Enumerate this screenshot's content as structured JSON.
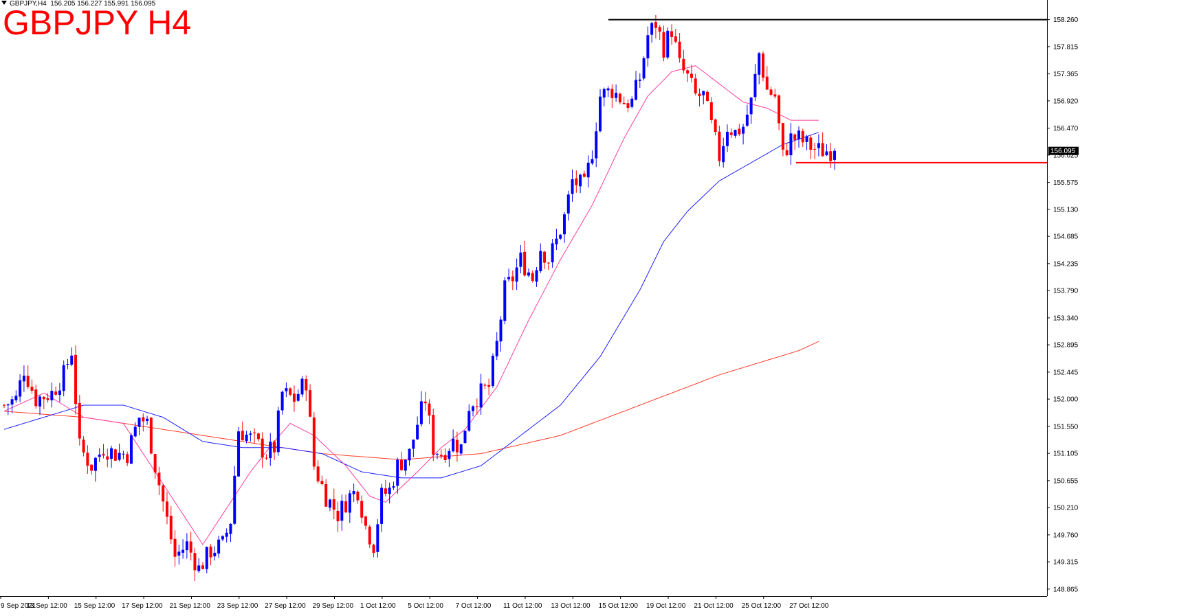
{
  "header": {
    "symbol_info": "GBPJPY,H4",
    "ohlc": "156.205 156.227 155.991 156.095",
    "title": "GBPJPY H4"
  },
  "chart_data": {
    "type": "candlestick",
    "symbol": "GBPJPY",
    "timeframe": "H4",
    "ylim": [
      148.75,
      158.38
    ],
    "y_ticks": [
      158.26,
      157.815,
      157.365,
      156.92,
      156.47,
      156.025,
      155.575,
      155.13,
      154.685,
      154.235,
      153.79,
      153.34,
      152.895,
      152.445,
      152.0,
      151.55,
      151.105,
      150.655,
      150.21,
      149.76,
      149.315,
      148.865
    ],
    "y_tick_labels": [
      "158.260",
      "157.815",
      "157.365",
      "156.920",
      "156.470",
      "156.025",
      "155.575",
      "155.130",
      "154.685",
      "154.235",
      "153.790",
      "153.340",
      "152.895",
      "152.445",
      "152.000",
      "151.550",
      "151.105",
      "150.655",
      "150.210",
      "149.760",
      "149.315",
      "148.865"
    ],
    "x_tick_labels": [
      "9 Sep 2021",
      "13 Sep 12:00",
      "15 Sep 12:00",
      "17 Sep 12:00",
      "21 Sep 12:00",
      "23 Sep 12:00",
      "27 Sep 12:00",
      "29 Sep 12:00",
      "1 Oct 12:00",
      "5 Oct 12:00",
      "7 Oct 12:00",
      "11 Oct 12:00",
      "13 Oct 12:00",
      "15 Oct 12:00",
      "19 Oct 12:00",
      "21 Oct 12:00",
      "25 Oct 12:00",
      "27 Oct 12:00"
    ],
    "x_tick_candle_index": [
      0,
      12,
      24,
      36,
      48,
      60,
      72,
      84,
      96,
      108,
      120,
      132,
      144,
      156,
      168,
      180,
      192,
      204
    ],
    "candles_count": 210,
    "current_price": 156.095,
    "current_price_label": "156.095",
    "resistance_level": 158.26,
    "support_level": 155.9,
    "bull_color": "#0000ff",
    "bear_color": "#ff0000",
    "ma_fast_color": "#ff3ca0",
    "ma_mid_color": "#1e1eff",
    "ma_slow_color": "#ff3c28",
    "close_anchors": [
      [
        0,
        151.9
      ],
      [
        3,
        152.0
      ],
      [
        5,
        152.5
      ],
      [
        8,
        152.0
      ],
      [
        12,
        152.1
      ],
      [
        15,
        152.4
      ],
      [
        17,
        152.8
      ],
      [
        19,
        151.2
      ],
      [
        22,
        150.9
      ],
      [
        25,
        151.2
      ],
      [
        28,
        151.1
      ],
      [
        31,
        151.1
      ],
      [
        34,
        151.7
      ],
      [
        36,
        151.6
      ],
      [
        38,
        150.9
      ],
      [
        41,
        150.0
      ],
      [
        43,
        149.4
      ],
      [
        46,
        149.6
      ],
      [
        49,
        149.2
      ],
      [
        52,
        149.5
      ],
      [
        55,
        149.6
      ],
      [
        57,
        150.0
      ],
      [
        59,
        151.5
      ],
      [
        61,
        151.4
      ],
      [
        63,
        151.3
      ],
      [
        66,
        151.1
      ],
      [
        68,
        151.2
      ],
      [
        70,
        152.1
      ],
      [
        73,
        152.0
      ],
      [
        76,
        152.3
      ],
      [
        78,
        150.9
      ],
      [
        81,
        150.4
      ],
      [
        84,
        150.1
      ],
      [
        87,
        150.4
      ],
      [
        89,
        150.5
      ],
      [
        91,
        149.9
      ],
      [
        93,
        149.6
      ],
      [
        95,
        150.4
      ],
      [
        97,
        150.5
      ],
      [
        99,
        150.9
      ],
      [
        102,
        151.1
      ],
      [
        104,
        151.6
      ],
      [
        106,
        152.0
      ],
      [
        108,
        151.2
      ],
      [
        110,
        151.1
      ],
      [
        113,
        151.3
      ],
      [
        115,
        151.2
      ],
      [
        117,
        151.9
      ],
      [
        120,
        152.1
      ],
      [
        122,
        152.2
      ],
      [
        124,
        152.9
      ],
      [
        126,
        153.8
      ],
      [
        128,
        154.0
      ],
      [
        130,
        154.3
      ],
      [
        133,
        154.0
      ],
      [
        135,
        154.5
      ],
      [
        137,
        154.3
      ],
      [
        139,
        154.6
      ],
      [
        141,
        155.0
      ],
      [
        143,
        155.6
      ],
      [
        146,
        155.5
      ],
      [
        148,
        156.1
      ],
      [
        150,
        157.0
      ],
      [
        153,
        157.1
      ],
      [
        156,
        156.9
      ],
      [
        158,
        156.9
      ],
      [
        160,
        157.3
      ],
      [
        162,
        158.0
      ],
      [
        164,
        158.2
      ],
      [
        166,
        157.8
      ],
      [
        168,
        158.1
      ],
      [
        170,
        157.5
      ],
      [
        172,
        157.3
      ],
      [
        174,
        157.0
      ],
      [
        176,
        157.0
      ],
      [
        178,
        156.5
      ],
      [
        180,
        156.0
      ],
      [
        182,
        156.5
      ],
      [
        184,
        156.4
      ],
      [
        186,
        156.5
      ],
      [
        188,
        156.9
      ],
      [
        190,
        157.7
      ],
      [
        192,
        157.1
      ],
      [
        194,
        157.0
      ],
      [
        196,
        156.0
      ],
      [
        198,
        156.3
      ],
      [
        200,
        156.3
      ],
      [
        202,
        156.2
      ],
      [
        205,
        156.1
      ]
    ],
    "ma_fast_anchors": [
      [
        0,
        151.8
      ],
      [
        10,
        152.1
      ],
      [
        20,
        151.7
      ],
      [
        30,
        151.6
      ],
      [
        36,
        151.0
      ],
      [
        44,
        150.2
      ],
      [
        50,
        149.6
      ],
      [
        56,
        150.2
      ],
      [
        62,
        150.8
      ],
      [
        68,
        151.3
      ],
      [
        72,
        151.6
      ],
      [
        78,
        151.4
      ],
      [
        86,
        150.9
      ],
      [
        92,
        150.4
      ],
      [
        96,
        150.3
      ],
      [
        104,
        150.8
      ],
      [
        110,
        151.2
      ],
      [
        116,
        151.5
      ],
      [
        124,
        152.2
      ],
      [
        132,
        153.3
      ],
      [
        140,
        154.3
      ],
      [
        148,
        155.2
      ],
      [
        156,
        156.3
      ],
      [
        162,
        157.0
      ],
      [
        168,
        157.4
      ],
      [
        174,
        157.5
      ],
      [
        180,
        157.2
      ],
      [
        186,
        156.9
      ],
      [
        192,
        156.8
      ],
      [
        198,
        156.6
      ],
      [
        205,
        156.6
      ]
    ],
    "ma_mid_anchors": [
      [
        0,
        151.5
      ],
      [
        10,
        151.7
      ],
      [
        20,
        151.9
      ],
      [
        30,
        151.9
      ],
      [
        40,
        151.7
      ],
      [
        50,
        151.3
      ],
      [
        60,
        151.2
      ],
      [
        70,
        151.2
      ],
      [
        80,
        151.1
      ],
      [
        90,
        150.8
      ],
      [
        100,
        150.7
      ],
      [
        110,
        150.7
      ],
      [
        120,
        150.9
      ],
      [
        130,
        151.4
      ],
      [
        140,
        151.9
      ],
      [
        150,
        152.7
      ],
      [
        160,
        153.8
      ],
      [
        166,
        154.6
      ],
      [
        172,
        155.1
      ],
      [
        180,
        155.6
      ],
      [
        188,
        155.9
      ],
      [
        196,
        156.2
      ],
      [
        205,
        156.4
      ]
    ],
    "ma_slow_anchors": [
      [
        0,
        151.8
      ],
      [
        20,
        151.7
      ],
      [
        40,
        151.5
      ],
      [
        60,
        151.3
      ],
      [
        80,
        151.1
      ],
      [
        100,
        151.0
      ],
      [
        120,
        151.1
      ],
      [
        140,
        151.4
      ],
      [
        160,
        151.9
      ],
      [
        180,
        152.4
      ],
      [
        200,
        152.8
      ],
      [
        205,
        152.95
      ]
    ]
  }
}
